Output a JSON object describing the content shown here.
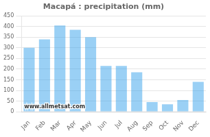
{
  "chart_data": {
    "type": "bar",
    "title": "Macapá : precipitation (mm)",
    "categories": [
      "Jan",
      "Feb",
      "Mar",
      "Apr",
      "May",
      "Jun",
      "Jul",
      "Aug",
      "Sep",
      "Oct",
      "Nov",
      "Dec"
    ],
    "values": [
      300,
      340,
      405,
      385,
      350,
      215,
      215,
      185,
      45,
      35,
      55,
      140
    ],
    "ylim": [
      0,
      450
    ],
    "yticks": [
      0,
      50,
      100,
      150,
      200,
      250,
      300,
      350,
      400,
      450
    ],
    "grid": "y",
    "annotations": [
      "www.allmetsat.com"
    ]
  }
}
